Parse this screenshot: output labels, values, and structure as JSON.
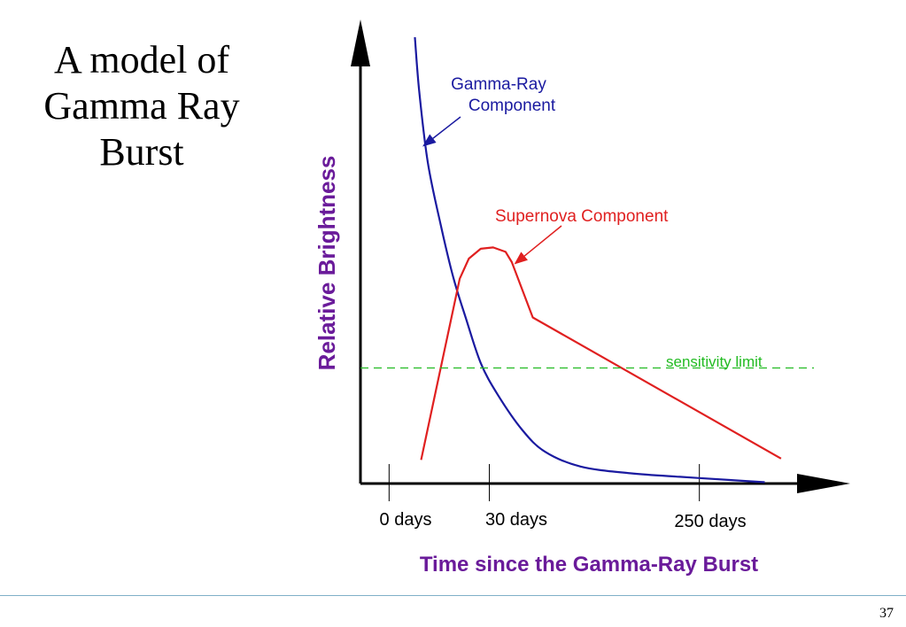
{
  "slide": {
    "title_lines": [
      "A model of",
      "Gamma Ray",
      "Burst"
    ],
    "page_number": "37"
  },
  "colors": {
    "axis": "#000000",
    "gamma_ray": "#1a1aa0",
    "supernova": "#e02020",
    "sensitivity": "#22bb22",
    "axis_title": "#6a1b9a",
    "rule": "#7fb0c8"
  },
  "chart_data": {
    "type": "line",
    "xlabel": "Time since the Gamma-Ray Burst",
    "ylabel": "Relative Brightness",
    "x_scale": "schematic (non-linear)",
    "xlim": [
      0,
      100
    ],
    "ylim": [
      0,
      100
    ],
    "x_ticks": [
      {
        "value": 6,
        "label": "0 days"
      },
      {
        "value": 27,
        "label": "30 days"
      },
      {
        "value": 71,
        "label": "250 days"
      }
    ],
    "y_ticks_shown": false,
    "grid": false,
    "series": [
      {
        "name": "Gamma-Ray Component",
        "color_key": "gamma_ray",
        "shape": "smooth",
        "x": [
          11.4,
          12.3,
          14.1,
          16.8,
          19.5,
          22.1,
          25.2,
          28.7,
          33.9,
          38.7,
          46.1,
          56.5,
          66.9,
          77.4,
          84.7
        ],
        "y": [
          100,
          88,
          72,
          58,
          46,
          37,
          27,
          20,
          12,
          7.1,
          3.8,
          2.3,
          1.5,
          0.8,
          0.3
        ]
      },
      {
        "name": "Supernova Component",
        "color_key": "supernova",
        "shape": "segments",
        "x": [
          12.7,
          20.8,
          22.7,
          25.2,
          27.8,
          30.4,
          31.7,
          36.1,
          88.1
        ],
        "y": [
          5.3,
          45.9,
          50.4,
          52.6,
          52.9,
          51.9,
          49.6,
          37.2,
          5.6
        ]
      },
      {
        "name": "sensitivity limit",
        "color_key": "sensitivity",
        "shape": "dashed",
        "x": [
          0,
          95
        ],
        "y": [
          25.9,
          25.9
        ]
      }
    ],
    "annotations": [
      {
        "text_lines": [
          "Gamma-Ray",
          "Component"
        ],
        "color_key": "gamma_ray",
        "arrow_to": {
          "x": 13.0,
          "y": 75.5
        }
      },
      {
        "text_lines": [
          "Supernova Component"
        ],
        "color_key": "supernova",
        "arrow_to": {
          "x": 32.2,
          "y": 49.1
        }
      },
      {
        "text_lines": [
          "sensitivity limit"
        ],
        "color_key": "sensitivity"
      }
    ]
  }
}
